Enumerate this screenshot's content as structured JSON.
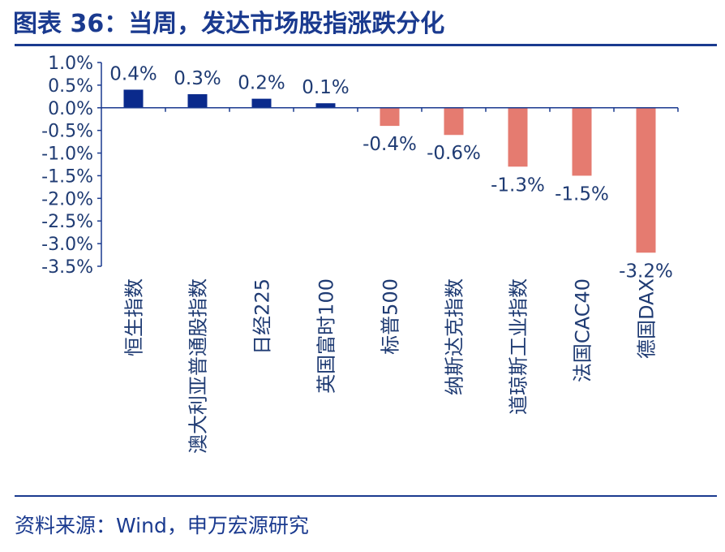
{
  "header": {
    "title": "图表 36：当周，发达市场股指涨跌分化"
  },
  "footer": {
    "source": "资料来源：Wind，申万宏源研究"
  },
  "colors": {
    "positive": "#0a2a8c",
    "negative": "#e57b70",
    "axis": "#1a3a8f",
    "text": "#1f3b73"
  },
  "chart_data": {
    "type": "bar",
    "title": "",
    "xlabel": "",
    "ylabel": "",
    "ylim": [
      -3.5,
      1.0
    ],
    "yticks": [
      1.0,
      0.5,
      0.0,
      -0.5,
      -1.0,
      -1.5,
      -2.0,
      -2.5,
      -3.0,
      -3.5
    ],
    "ytick_labels": [
      "1.0%",
      "0.5%",
      "0.0%",
      "-0.5%",
      "-1.0%",
      "-1.5%",
      "-2.0%",
      "-2.5%",
      "-3.0%",
      "-3.5%"
    ],
    "categories": [
      "恒生指数",
      "澳大利亚普通股指数",
      "日经225",
      "英国富时100",
      "标普500",
      "纳斯达克指数",
      "道琼斯工业指数",
      "法国CAC40",
      "德国DAX"
    ],
    "values": [
      0.4,
      0.3,
      0.2,
      0.1,
      -0.4,
      -0.6,
      -1.3,
      -1.5,
      -3.2
    ],
    "value_labels": [
      "0.4%",
      "0.3%",
      "0.2%",
      "0.1%",
      "-0.4%",
      "-0.6%",
      "-1.3%",
      "-1.5%",
      "-3.2%"
    ],
    "grid": false,
    "legend": "none"
  }
}
